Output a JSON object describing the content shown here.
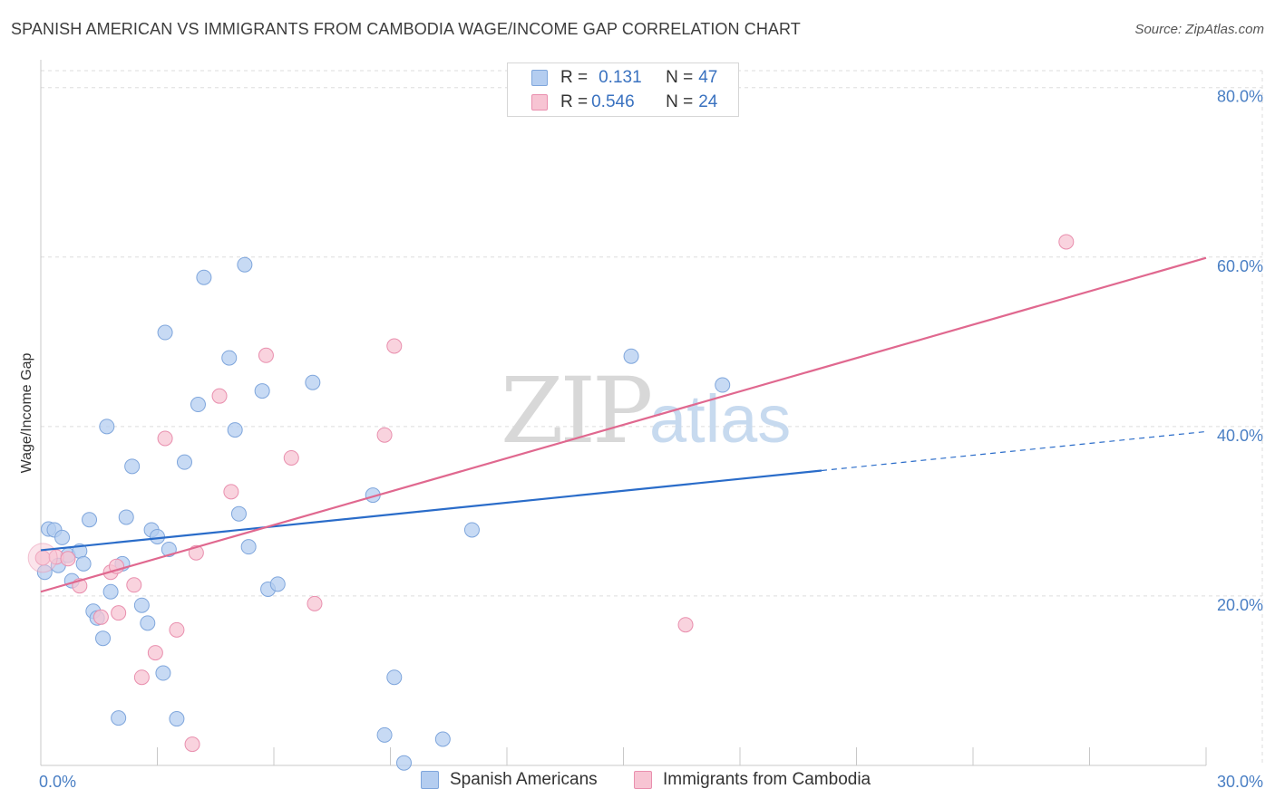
{
  "header": {
    "title": "SPANISH AMERICAN VS IMMIGRANTS FROM CAMBODIA WAGE/INCOME GAP CORRELATION CHART",
    "source": "Source: ZipAtlas.com"
  },
  "legend": {
    "rows": [
      {
        "r_label": "R = ",
        "r_value": "0.131",
        "n_label": "N = ",
        "n_value": "47"
      },
      {
        "r_label": "R = ",
        "r_value": "0.546",
        "n_label": "N = ",
        "n_value": "24"
      }
    ]
  },
  "watermark": {
    "zip": "ZIP",
    "atlas": "atlas"
  },
  "colors": {
    "blue_fill": "#b4cdf0",
    "blue_stroke": "#7fa6dc",
    "blue_line": "#2a6cc9",
    "pink_fill": "#f7c4d3",
    "pink_stroke": "#e98fae",
    "pink_line": "#e0688f",
    "grid": "#dddddd",
    "tick_text": "#4a7fc4"
  },
  "chart_data": {
    "type": "scatter",
    "title": "SPANISH AMERICAN VS IMMIGRANTS FROM CAMBODIA WAGE/INCOME GAP CORRELATION CHART",
    "xlabel": "",
    "ylabel": "Wage/Income Gap",
    "xlim": [
      0,
      30
    ],
    "ylim": [
      0,
      82
    ],
    "x_tick_labels": [
      "0.0%",
      "30.0%"
    ],
    "y_ticks": [
      20,
      40,
      60,
      80
    ],
    "y_tick_labels": [
      "20.0%",
      "40.0%",
      "60.0%",
      "80.0%"
    ],
    "grid": true,
    "legend_position": "top-center",
    "series": [
      {
        "name": "Spanish Americans",
        "color": "#b4cdf0",
        "r": 0.131,
        "n": 47,
        "trend": {
          "x0": 0,
          "y0": 25.4,
          "x1": 20.1,
          "y1": 34.8,
          "dash_x1": 30,
          "dash_y1": 39.4
        },
        "points": [
          [
            0.1,
            22.8
          ],
          [
            0.2,
            27.9
          ],
          [
            0.35,
            27.8
          ],
          [
            0.45,
            23.6
          ],
          [
            0.55,
            26.9
          ],
          [
            0.7,
            24.8
          ],
          [
            0.8,
            21.8
          ],
          [
            1.0,
            25.3
          ],
          [
            1.1,
            23.8
          ],
          [
            1.25,
            29.0
          ],
          [
            1.35,
            18.2
          ],
          [
            1.45,
            17.4
          ],
          [
            1.6,
            15.0
          ],
          [
            1.7,
            40.0
          ],
          [
            1.8,
            20.5
          ],
          [
            2.0,
            5.6
          ],
          [
            2.1,
            23.8
          ],
          [
            2.2,
            29.3
          ],
          [
            2.35,
            35.3
          ],
          [
            2.6,
            18.9
          ],
          [
            2.75,
            16.8
          ],
          [
            2.85,
            27.8
          ],
          [
            3.0,
            27.0
          ],
          [
            3.15,
            10.9
          ],
          [
            3.2,
            51.1
          ],
          [
            3.3,
            25.5
          ],
          [
            3.5,
            5.5
          ],
          [
            3.7,
            35.8
          ],
          [
            4.05,
            42.6
          ],
          [
            4.2,
            57.6
          ],
          [
            4.85,
            48.1
          ],
          [
            5.0,
            39.6
          ],
          [
            5.1,
            29.7
          ],
          [
            5.25,
            59.1
          ],
          [
            5.35,
            25.8
          ],
          [
            5.7,
            44.2
          ],
          [
            5.85,
            20.8
          ],
          [
            6.1,
            21.4
          ],
          [
            7.0,
            45.2
          ],
          [
            8.55,
            31.9
          ],
          [
            8.85,
            3.6
          ],
          [
            9.1,
            10.4
          ],
          [
            9.35,
            0.3
          ],
          [
            10.35,
            3.1
          ],
          [
            11.1,
            27.8
          ],
          [
            15.2,
            48.3
          ],
          [
            17.55,
            44.9
          ]
        ]
      },
      {
        "name": "Immigrants from Cambodia",
        "color": "#f7c4d3",
        "r": 0.546,
        "n": 24,
        "trend": {
          "x0": 0,
          "y0": 20.5,
          "x1": 30,
          "y1": 59.9
        },
        "points": [
          [
            0.05,
            24.5
          ],
          [
            0.4,
            24.6
          ],
          [
            0.7,
            24.4
          ],
          [
            1.0,
            21.2
          ],
          [
            1.55,
            17.5
          ],
          [
            1.8,
            22.8
          ],
          [
            1.95,
            23.5
          ],
          [
            2.0,
            18.0
          ],
          [
            2.4,
            21.3
          ],
          [
            2.6,
            10.4
          ],
          [
            2.95,
            13.3
          ],
          [
            3.2,
            38.6
          ],
          [
            3.5,
            16.0
          ],
          [
            3.9,
            2.5
          ],
          [
            4.0,
            25.1
          ],
          [
            4.6,
            43.6
          ],
          [
            4.9,
            32.3
          ],
          [
            5.8,
            48.4
          ],
          [
            6.45,
            36.3
          ],
          [
            7.05,
            19.1
          ],
          [
            8.85,
            39.0
          ],
          [
            9.1,
            49.5
          ],
          [
            16.6,
            16.6
          ],
          [
            26.4,
            61.8
          ]
        ]
      }
    ]
  }
}
